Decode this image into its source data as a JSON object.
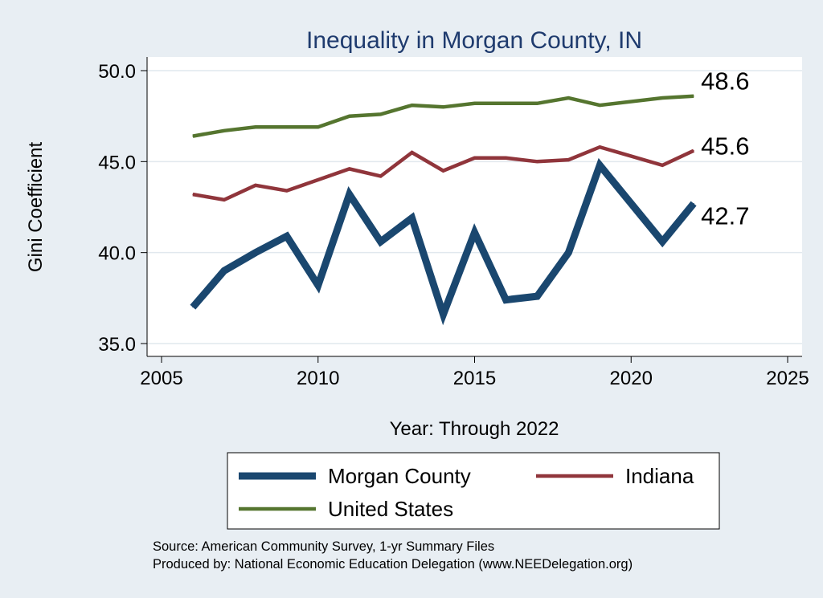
{
  "chart_data": {
    "type": "line",
    "title": "Inequality in Morgan County, IN",
    "xlabel": "Year: Through 2022",
    "ylabel": "Gini Coefficient",
    "xlim": [
      2005,
      2025
    ],
    "ylim": [
      35,
      50
    ],
    "x_ticks": [
      2005,
      2010,
      2015,
      2020,
      2025
    ],
    "y_ticks": [
      35,
      40,
      45,
      50
    ],
    "y_tick_labels": [
      "35.0",
      "40.0",
      "45.0",
      "50.0"
    ],
    "grid": true,
    "legend_position": "bottom",
    "series": [
      {
        "name": "Morgan County",
        "color": "#1a476f",
        "end_label": "42.7",
        "x": [
          2006,
          2007,
          2008,
          2009,
          2010,
          2011,
          2012,
          2013,
          2014,
          2015,
          2016,
          2017,
          2018,
          2019,
          2021,
          2022
        ],
        "values": [
          37.0,
          39.0,
          40.0,
          40.9,
          38.2,
          43.2,
          40.6,
          41.9,
          36.6,
          41.1,
          37.4,
          37.6,
          40.0,
          44.8,
          40.6,
          42.7
        ]
      },
      {
        "name": "Indiana",
        "color": "#90353b",
        "end_label": "45.6",
        "x": [
          2006,
          2007,
          2008,
          2009,
          2010,
          2011,
          2012,
          2013,
          2014,
          2015,
          2016,
          2017,
          2018,
          2019,
          2021,
          2022
        ],
        "values": [
          43.2,
          42.9,
          43.7,
          43.4,
          44.0,
          44.6,
          44.2,
          45.5,
          44.5,
          45.2,
          45.2,
          45.0,
          45.1,
          45.8,
          44.8,
          45.6
        ]
      },
      {
        "name": "United States",
        "color": "#55752f",
        "end_label": "48.6",
        "x": [
          2006,
          2007,
          2008,
          2009,
          2010,
          2011,
          2012,
          2013,
          2014,
          2015,
          2016,
          2017,
          2018,
          2019,
          2021,
          2022
        ],
        "values": [
          46.4,
          46.7,
          46.9,
          46.9,
          46.9,
          47.5,
          47.6,
          48.1,
          48.0,
          48.2,
          48.2,
          48.2,
          48.5,
          48.1,
          48.5,
          48.6
        ]
      }
    ]
  },
  "notes": {
    "source": "Source: American Community Survey, 1-yr Summary Files",
    "produced_by": "Produced by: National Economic Education Delegation (www.NEEDelegation.org)"
  }
}
